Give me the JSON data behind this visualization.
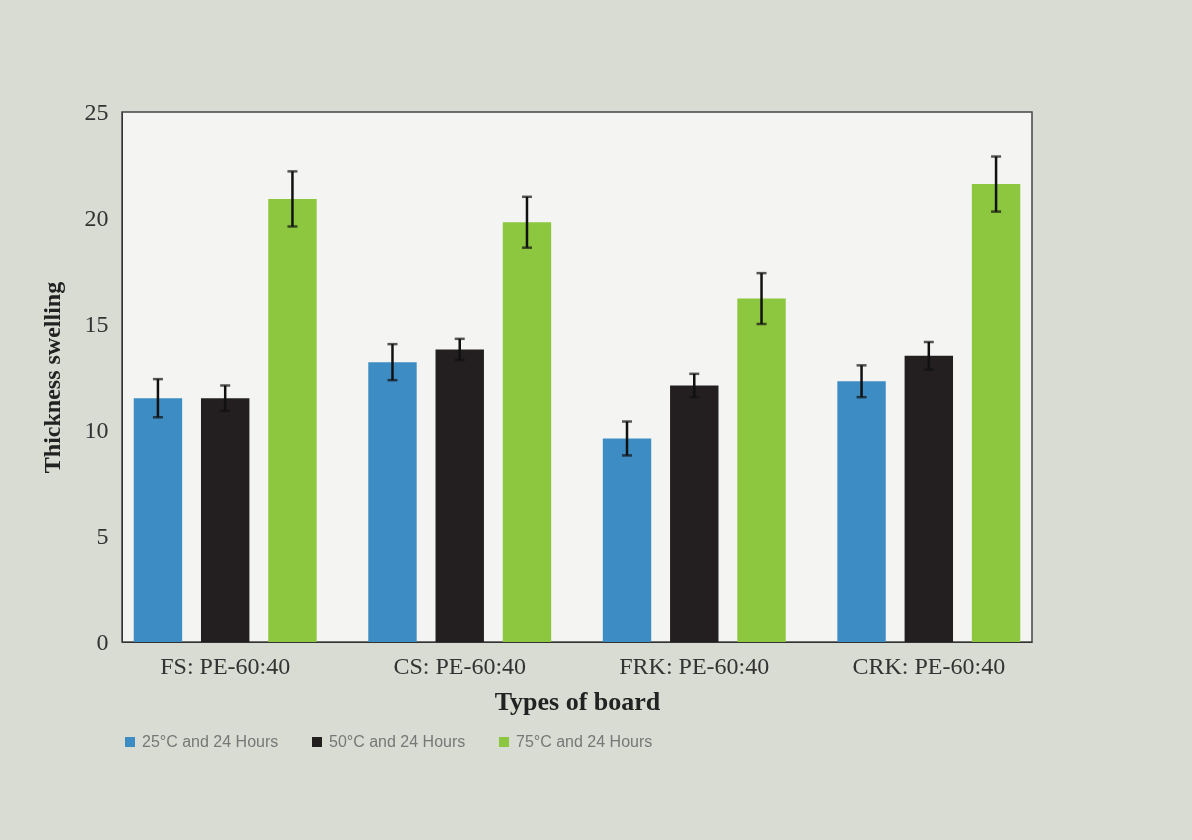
{
  "chart_data": {
    "type": "bar",
    "xlabel": "Types of board",
    "ylabel": "Thickness swelling",
    "categories": [
      "FS: PE-60:40",
      "CS: PE-60:40",
      "FRK: PE-60:40",
      "CRK: PE-60:40"
    ],
    "series": [
      {
        "name": "25°C and 24 Hours",
        "color": "#3d8dc4",
        "values": [
          11.5,
          13.2,
          9.6,
          12.3
        ],
        "errors": [
          0.9,
          0.85,
          0.8,
          0.75
        ]
      },
      {
        "name": "50°C and 24 Hours",
        "color": "#231f20",
        "values": [
          11.5,
          13.8,
          12.1,
          13.5
        ],
        "errors": [
          0.6,
          0.5,
          0.55,
          0.65
        ]
      },
      {
        "name": "75°C and 24 Hours",
        "color": "#8dc63f",
        "values": [
          20.9,
          19.8,
          16.2,
          21.6
        ],
        "errors": [
          1.3,
          1.2,
          1.2,
          1.3
        ]
      }
    ],
    "ylim": [
      0,
      25
    ],
    "yticks": [
      0,
      5,
      10,
      15,
      20,
      25
    ],
    "grid": false,
    "legend": "bottom"
  }
}
